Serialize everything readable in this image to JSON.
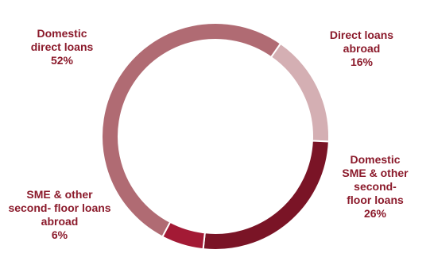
{
  "chart_data": {
    "type": "pie",
    "variant": "donut",
    "title": "",
    "slices": [
      {
        "label_lines": [
          "Direct loans",
          "abroad"
        ],
        "value": 16,
        "value_label": "16%",
        "color": "#d4afb3"
      },
      {
        "label_lines": [
          "Domestic",
          "SME & other",
          "second-",
          "floor loans"
        ],
        "value": 26,
        "value_label": "26%",
        "color": "#7a1426"
      },
      {
        "label_lines": [
          "SME & other",
          "second- floor loans",
          "abroad"
        ],
        "value": 6,
        "value_label": "6%",
        "color": "#a31a35"
      },
      {
        "label_lines": [
          "Domestic",
          "direct loans"
        ],
        "value": 52,
        "value_label": "52%",
        "color": "#b06b73"
      }
    ],
    "start_angle_deg": 35,
    "direction": "clockwise",
    "label_color": "#8b1a2b",
    "legend": "none"
  }
}
